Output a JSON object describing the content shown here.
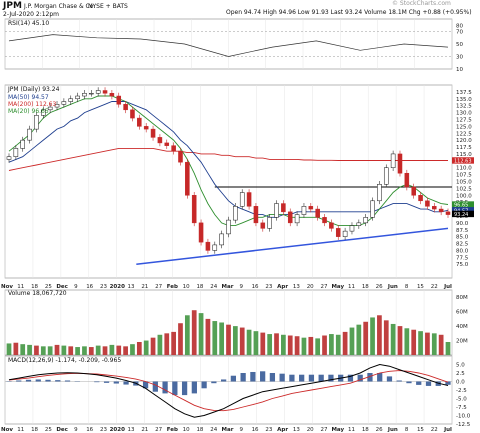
{
  "header": {
    "symbol": "JPM",
    "company": "J.P. Morgan Chase & Co.",
    "exchange": "NYSE + BATS",
    "date": "2-Jul-2020 2:12pm",
    "quote": "Open 94.74  High 94.96  Low 91.93  Last 93.24  Volume 18.1M  Chg +0.88 (+0.95%)",
    "watermark": "© StockCharts.com"
  },
  "panels": {
    "rsi_label": "RSI(14) 45.10",
    "price_label": "JPM (Daily) 93.24",
    "ma50_label": "MA(50) 94.57",
    "ma200_label": "MA(200) 112.63",
    "ma20_label": "MA(20) 96.65",
    "volume_label": "Volume 18,067,720",
    "macd_label": "MACD(12,26,9) -1.174, -0.209, -0.965"
  },
  "colors": {
    "up": "#2e7d32",
    "down": "#c62828",
    "ma50": "#1f3f8f",
    "ma200": "#cc2a2a",
    "ma20": "#2f8f2f",
    "trendline": "#3355dd",
    "macd": "#000000",
    "signal": "#cc2a2a",
    "volume_green": "#55a055",
    "volume_red": "#c04040"
  },
  "chart_data": [
    {
      "type": "line",
      "title": "RSI(14)",
      "ylim": [
        10,
        90
      ],
      "ticks": [
        "80",
        "70",
        "50",
        "30",
        "10"
      ],
      "x_index": [
        0,
        20,
        40,
        60,
        80,
        100,
        120,
        140,
        160,
        180,
        200
      ],
      "values": [
        55,
        65,
        60,
        58,
        50,
        30,
        45,
        55,
        40,
        50,
        45
      ]
    },
    {
      "type": "candlestick",
      "title": "JPM (Daily) 93.24",
      "ylim": [
        70,
        140
      ],
      "ticks": [
        "137.5",
        "135.0",
        "132.5",
        "130.0",
        "127.5",
        "125.0",
        "122.5",
        "120.0",
        "117.5",
        "115.0",
        "112.5",
        "110.0",
        "107.5",
        "105.0",
        "102.5",
        "100.0",
        "97.5",
        "95.0",
        "92.5",
        "90.0",
        "87.5",
        "85.0",
        "82.5",
        "80.0",
        "77.5",
        "75.0"
      ],
      "x_labels": [
        "Nov",
        "11",
        "18",
        "25",
        "Dec",
        "9",
        "16",
        "23",
        "2020",
        "13",
        "21",
        "27",
        "Feb",
        "10",
        "18",
        "24",
        "Mar",
        "9",
        "16",
        "23",
        "Apr",
        "13",
        "20",
        "27",
        "May",
        "11",
        "18",
        "26",
        "Jun",
        "8",
        "15",
        "22",
        "Jul"
      ],
      "close": [
        114,
        117,
        120,
        124,
        129,
        131,
        132,
        133,
        134,
        135,
        136,
        137,
        137,
        138,
        137,
        136,
        133,
        131,
        128,
        125,
        124,
        121,
        119,
        118,
        116,
        112,
        100,
        90,
        83,
        80,
        82,
        86,
        91,
        96,
        101,
        96,
        90,
        88,
        92,
        97,
        94,
        90,
        93,
        96,
        95,
        92,
        90,
        88,
        85,
        87,
        89,
        90,
        92,
        98,
        104,
        110,
        115,
        108,
        103,
        100,
        98,
        96,
        95,
        94,
        93
      ],
      "ma50": [
        112,
        113,
        114,
        116,
        118,
        120,
        122,
        124,
        125,
        127,
        128,
        130,
        131,
        132,
        133,
        134,
        134,
        134,
        133,
        132,
        131,
        129,
        127,
        125,
        123,
        120,
        118,
        115,
        112,
        108,
        104,
        101,
        98,
        96,
        95,
        94,
        93,
        93,
        92,
        92,
        93,
        93,
        94,
        94,
        94,
        94,
        94,
        94,
        94,
        94,
        94,
        94,
        94,
        94,
        95,
        96,
        97,
        97,
        97,
        96,
        95,
        95,
        94,
        94,
        94.57
      ],
      "ma200": [
        109,
        109.5,
        110,
        110.5,
        111,
        111.5,
        112,
        112.5,
        113,
        113.5,
        114,
        114.5,
        115,
        115.5,
        116,
        116.5,
        117,
        117,
        117,
        117,
        117,
        117,
        116.5,
        116,
        116,
        116,
        115.5,
        115.5,
        115,
        115,
        115,
        114.5,
        114.5,
        114,
        114,
        114,
        113.5,
        113.5,
        113,
        113,
        113,
        113,
        113,
        112.8,
        112.8,
        112.7,
        112.7,
        112.7,
        112.6,
        112.6,
        112.6,
        112.6,
        112.6,
        112.6,
        112.6,
        112.6,
        112.6,
        112.6,
        112.6,
        112.6,
        112.6,
        112.6,
        112.6,
        112.6,
        112.63
      ],
      "ma20": [
        116,
        118,
        120,
        122,
        125,
        128,
        130,
        131,
        132,
        133,
        134,
        135,
        135,
        136,
        136,
        136,
        135,
        134,
        132,
        130,
        128,
        126,
        124,
        122,
        120,
        117,
        113,
        108,
        102,
        97,
        93,
        90,
        89,
        89,
        90,
        91,
        92,
        92,
        93,
        93,
        93,
        92,
        92,
        92,
        92,
        92,
        91,
        90,
        89,
        89,
        89,
        89,
        90,
        92,
        95,
        98,
        101,
        103,
        104,
        103,
        101,
        99,
        98,
        97,
        96.65
      ],
      "annotations": {
        "resistance": 103,
        "trendline": [
          [
            58,
            75
          ],
          [
            200,
            88
          ]
        ]
      },
      "price_tags": [
        "112.63",
        "96.65",
        "94.57",
        "93.24"
      ]
    },
    {
      "type": "bar",
      "title": "Volume",
      "ylim": [
        0,
        90
      ],
      "ticks": [
        "80M",
        "60M",
        "40M",
        "20M"
      ],
      "values": [
        16,
        17,
        15,
        14,
        13,
        12,
        12,
        14,
        13,
        12,
        11,
        12,
        11,
        13,
        12,
        14,
        13,
        12,
        15,
        18,
        20,
        24,
        28,
        30,
        32,
        44,
        55,
        62,
        58,
        50,
        47,
        45,
        42,
        40,
        38,
        35,
        33,
        31,
        29,
        30,
        28,
        27,
        26,
        24,
        25,
        23,
        27,
        29,
        28,
        32,
        38,
        42,
        46,
        52,
        55,
        48,
        43,
        40,
        37,
        35,
        33,
        31,
        30,
        28,
        18
      ],
      "up_days": [
        1,
        0,
        1,
        1,
        0,
        1,
        1,
        0,
        1,
        0,
        1,
        1,
        0,
        1,
        0,
        1,
        0,
        0,
        1,
        0,
        1,
        0,
        1,
        0,
        0,
        0,
        1,
        0,
        1,
        0,
        1,
        1,
        0,
        1,
        0,
        1,
        1,
        0,
        1,
        0,
        1,
        0,
        0,
        1,
        0,
        1,
        0,
        1,
        1,
        0,
        1,
        1,
        0,
        1,
        0,
        0,
        1,
        0,
        1,
        0,
        1,
        0,
        1,
        0,
        1
      ]
    },
    {
      "type": "line",
      "title": "MACD(12,26,9)",
      "ylim": [
        -12.5,
        7.5
      ],
      "ticks": [
        "5.0",
        "2.5",
        "0.0",
        "-2.5",
        "-5.0",
        "-7.5",
        "-10.0",
        "-12.5"
      ],
      "macd": [
        0.5,
        1.0,
        1.5,
        2.0,
        2.3,
        2.5,
        2.6,
        2.5,
        2.3,
        2.0,
        1.5,
        1.0,
        0.3,
        -0.5,
        -2.0,
        -4.0,
        -6.0,
        -8.0,
        -9.5,
        -10.5,
        -10.0,
        -9.0,
        -8.0,
        -6.5,
        -5.0,
        -4.0,
        -3.0,
        -2.5,
        -2.0,
        -1.5,
        -1.0,
        -0.5,
        0.0,
        0.5,
        1.0,
        1.5,
        2.5,
        4.0,
        5.0,
        4.5,
        3.5,
        2.5,
        1.5,
        0.5,
        -0.5,
        -1.174
      ],
      "signal": [
        0.4,
        0.7,
        1.0,
        1.4,
        1.8,
        2.1,
        2.3,
        2.4,
        2.3,
        2.2,
        1.9,
        1.6,
        1.2,
        0.7,
        0.0,
        -1.0,
        -2.5,
        -4.0,
        -5.5,
        -7.0,
        -8.0,
        -8.5,
        -8.6,
        -8.2,
        -7.5,
        -6.8,
        -6.0,
        -5.0,
        -4.3,
        -3.5,
        -3.0,
        -2.5,
        -2.0,
        -1.5,
        -1.0,
        -0.5,
        0.5,
        1.5,
        2.5,
        3.0,
        3.2,
        3.0,
        2.5,
        1.8,
        0.8,
        -0.209
      ],
      "histogram": [
        0.1,
        0.3,
        0.5,
        0.6,
        0.5,
        0.4,
        0.3,
        0.1,
        0.0,
        -0.2,
        -0.4,
        -0.6,
        -0.9,
        -1.2,
        -2.0,
        -3.0,
        -3.5,
        -4.0,
        -4.0,
        -3.5,
        -2.0,
        -0.5,
        0.6,
        1.7,
        2.5,
        2.8,
        3.0,
        2.5,
        2.3,
        2.0,
        2.0,
        2.0,
        2.0,
        2.0,
        2.0,
        2.0,
        2.0,
        2.5,
        2.5,
        1.5,
        0.3,
        -0.5,
        -1.0,
        -1.3,
        -1.3,
        -0.965
      ]
    }
  ]
}
